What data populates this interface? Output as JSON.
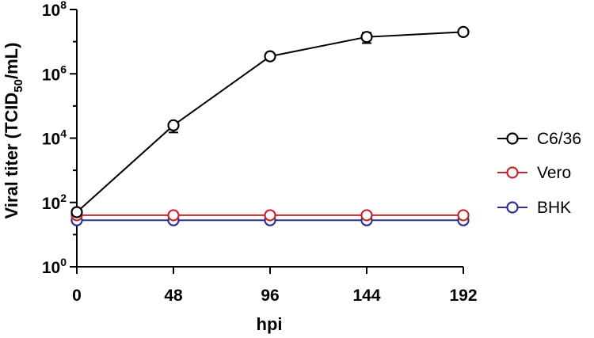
{
  "chart_data": {
    "type": "line",
    "title": "",
    "xlabel": "hpi",
    "ylabel": {
      "prefix": "Viral titer (TCID",
      "subscript": "50",
      "suffix": "/mL)"
    },
    "x": [
      0,
      48,
      96,
      144,
      192
    ],
    "x_tick_labels": [
      "0",
      "48",
      "96",
      "144",
      "192"
    ],
    "xlim": [
      0,
      192
    ],
    "y_scale": "log10",
    "ylim": [
      1,
      100000000
    ],
    "y_ticks": [
      {
        "value": 1,
        "base": "10",
        "exp": "0"
      },
      {
        "value": 100,
        "base": "10",
        "exp": "2"
      },
      {
        "value": 10000,
        "base": "10",
        "exp": "4"
      },
      {
        "value": 1000000,
        "base": "10",
        "exp": "6"
      },
      {
        "value": 100000000,
        "base": "10",
        "exp": "8"
      }
    ],
    "grid": false,
    "legend_position": "right",
    "series": [
      {
        "name": "C6/36",
        "color": "#000000",
        "values": [
          50,
          25000,
          3500000,
          14000000,
          20000000
        ],
        "error_low": [
          null,
          15000,
          null,
          9000000,
          null
        ],
        "error_high": [
          null,
          null,
          null,
          19000000,
          null
        ]
      },
      {
        "name": "Vero",
        "color": "#c0282d",
        "values": [
          40,
          40,
          40,
          40,
          40
        ]
      },
      {
        "name": "BHK",
        "color": "#2e3192",
        "values": [
          28,
          28,
          28,
          28,
          28
        ]
      }
    ]
  }
}
